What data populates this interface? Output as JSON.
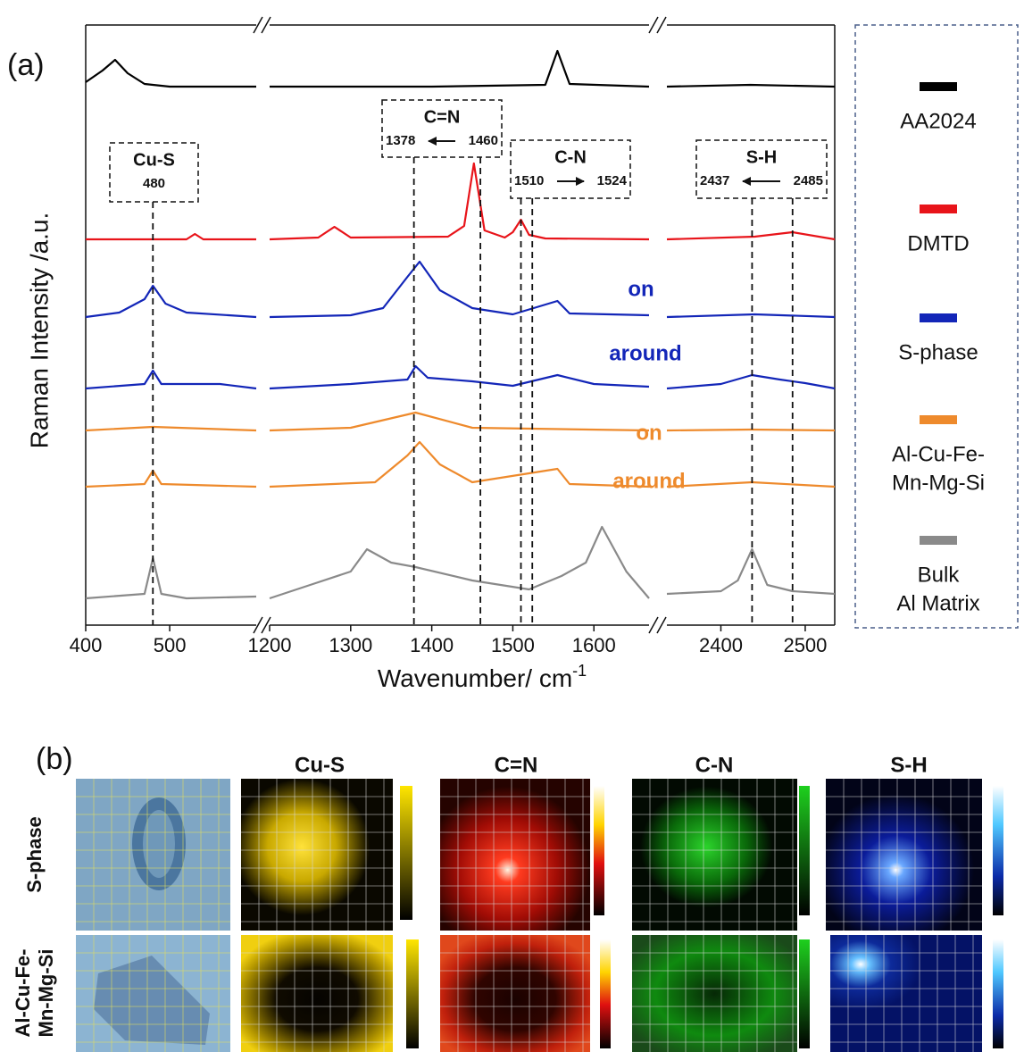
{
  "chart_data": {
    "type": "line",
    "panel_label": "(a)",
    "y_label": "Raman Intensity /a.u.",
    "x_label": "Wavenumber/ cm",
    "x_label_sup": "-1",
    "segments": [
      {
        "xlim": [
          400,
          603
        ],
        "xticks": [
          400,
          500
        ]
      },
      {
        "xlim": [
          1200,
          1668
        ],
        "xticks": [
          1200,
          1300,
          1400,
          1500,
          1600
        ]
      },
      {
        "xlim": [
          2336,
          2535
        ],
        "xticks": [
          2400,
          2500
        ]
      }
    ],
    "legend": [
      {
        "name": [
          "AA2024"
        ],
        "color": "#000000"
      },
      {
        "name": [
          "DMTD"
        ],
        "color": "#e8141a"
      },
      {
        "name": [
          "S-phase"
        ],
        "color": "#1326b8"
      },
      {
        "name": [
          "Al-Cu-Fe-",
          "Mn-Mg-Si"
        ],
        "color": "#ee8a2c"
      },
      {
        "name": [
          "Bulk",
          "Al Matrix"
        ],
        "color": "#8a8a8a"
      }
    ],
    "series": [
      {
        "legend": 0,
        "color": "#000000",
        "segments": [
          {
            "x": [
              400,
              420,
              435,
              450,
              470,
              500,
              550,
              603
            ],
            "values": [
              5,
              18,
              30,
              15,
              3,
              0,
              0,
              0
            ]
          },
          {
            "x": [
              1200,
              1400,
              1540,
              1555,
              1570,
              1668
            ],
            "values": [
              0,
              0,
              2,
              40,
              3,
              0
            ]
          },
          {
            "x": [
              2336,
              2435,
              2535
            ],
            "values": [
              0,
              2,
              0
            ]
          }
        ]
      },
      {
        "legend": 1,
        "color": "#e8141a",
        "segments": [
          {
            "x": [
              400,
              520,
              530,
              540,
              603
            ],
            "values": [
              0,
              0,
              6,
              0,
              0
            ]
          },
          {
            "x": [
              1200,
              1260,
              1280,
              1300,
              1420,
              1440,
              1452,
              1465,
              1490,
              1500,
              1510,
              1520,
              1540,
              1668
            ],
            "values": [
              0,
              2,
              14,
              2,
              3,
              15,
              85,
              10,
              2,
              8,
              22,
              5,
              1,
              0
            ]
          },
          {
            "x": [
              2336,
              2440,
              2485,
              2535
            ],
            "values": [
              0,
              3,
              8,
              0
            ]
          }
        ]
      },
      {
        "legend": 2,
        "color": "#1326b8",
        "label": "on",
        "segments": [
          {
            "x": [
              400,
              440,
              470,
              480,
              495,
              520,
              603
            ],
            "values": [
              0,
              5,
              20,
              35,
              15,
              5,
              0
            ]
          },
          {
            "x": [
              1200,
              1300,
              1340,
              1370,
              1385,
              1410,
              1450,
              1500,
              1555,
              1570,
              1668
            ],
            "values": [
              0,
              2,
              10,
              45,
              62,
              30,
              10,
              3,
              18,
              4,
              2
            ]
          },
          {
            "x": [
              2336,
              2440,
              2535
            ],
            "values": [
              0,
              3,
              0
            ]
          }
        ]
      },
      {
        "legend": 2,
        "color": "#1326b8",
        "label": "around",
        "segments": [
          {
            "x": [
              400,
              470,
              480,
              490,
              560,
              603
            ],
            "values": [
              0,
              5,
              20,
              5,
              5,
              0
            ]
          },
          {
            "x": [
              1200,
              1300,
              1370,
              1380,
              1395,
              1450,
              1500,
              1555,
              1600,
              1668
            ],
            "values": [
              0,
              5,
              10,
              25,
              12,
              8,
              3,
              15,
              5,
              2
            ]
          },
          {
            "x": [
              2336,
              2400,
              2437,
              2470,
              2500,
              2535
            ],
            "values": [
              0,
              5,
              15,
              10,
              6,
              0
            ]
          }
        ]
      },
      {
        "legend": 3,
        "color": "#ee8a2c",
        "label": "on",
        "segments": [
          {
            "x": [
              400,
              480,
              603
            ],
            "values": [
              0,
              4,
              0
            ]
          },
          {
            "x": [
              1200,
              1300,
              1380,
              1450,
              1668
            ],
            "values": [
              0,
              3,
              20,
              3,
              0
            ]
          },
          {
            "x": [
              2336,
              2435,
              2535
            ],
            "values": [
              0,
              1,
              0
            ]
          }
        ]
      },
      {
        "legend": 3,
        "color": "#ee8a2c",
        "label": "around",
        "segments": [
          {
            "x": [
              400,
              470,
              480,
              490,
              603
            ],
            "values": [
              0,
              3,
              18,
              3,
              0
            ]
          },
          {
            "x": [
              1200,
              1330,
              1370,
              1385,
              1410,
              1450,
              1555,
              1570,
              1668
            ],
            "values": [
              0,
              5,
              35,
              50,
              25,
              5,
              20,
              3,
              0
            ]
          },
          {
            "x": [
              2336,
              2437,
              2535
            ],
            "values": [
              0,
              5,
              0
            ]
          }
        ]
      },
      {
        "legend": 4,
        "color": "#8a8a8a",
        "segments": [
          {
            "x": [
              400,
              470,
              480,
              490,
              520,
              603
            ],
            "values": [
              0,
              5,
              45,
              5,
              0,
              2
            ]
          },
          {
            "x": [
              1200,
              1250,
              1300,
              1320,
              1350,
              1380,
              1450,
              1520,
              1560,
              1590,
              1610,
              1640,
              1668
            ],
            "values": [
              0,
              15,
              30,
              55,
              40,
              35,
              20,
              10,
              25,
              40,
              80,
              30,
              0
            ]
          },
          {
            "x": [
              2336,
              2400,
              2420,
              2437,
              2455,
              2485,
              2535
            ],
            "values": [
              5,
              8,
              20,
              55,
              15,
              8,
              5
            ]
          }
        ]
      }
    ],
    "annotations": [
      {
        "title": "Cu-S",
        "peaks": [
          480
        ]
      },
      {
        "title": "C=N",
        "peaks": [
          1378,
          1460
        ],
        "arrow": "left"
      },
      {
        "title": "C-N",
        "peaks": [
          1510,
          1524
        ],
        "arrow": "right"
      },
      {
        "title": "S-H",
        "peaks": [
          2437,
          2485
        ],
        "arrow": "left"
      }
    ]
  },
  "panel_b": {
    "panel_label": "(b)",
    "columns": [
      "Cu-S",
      "C=N",
      "C-N",
      "S-H"
    ],
    "rows": [
      [
        "S-phase"
      ],
      [
        "Al-Cu-Fe-",
        "Mn-Mg-Si"
      ]
    ]
  }
}
